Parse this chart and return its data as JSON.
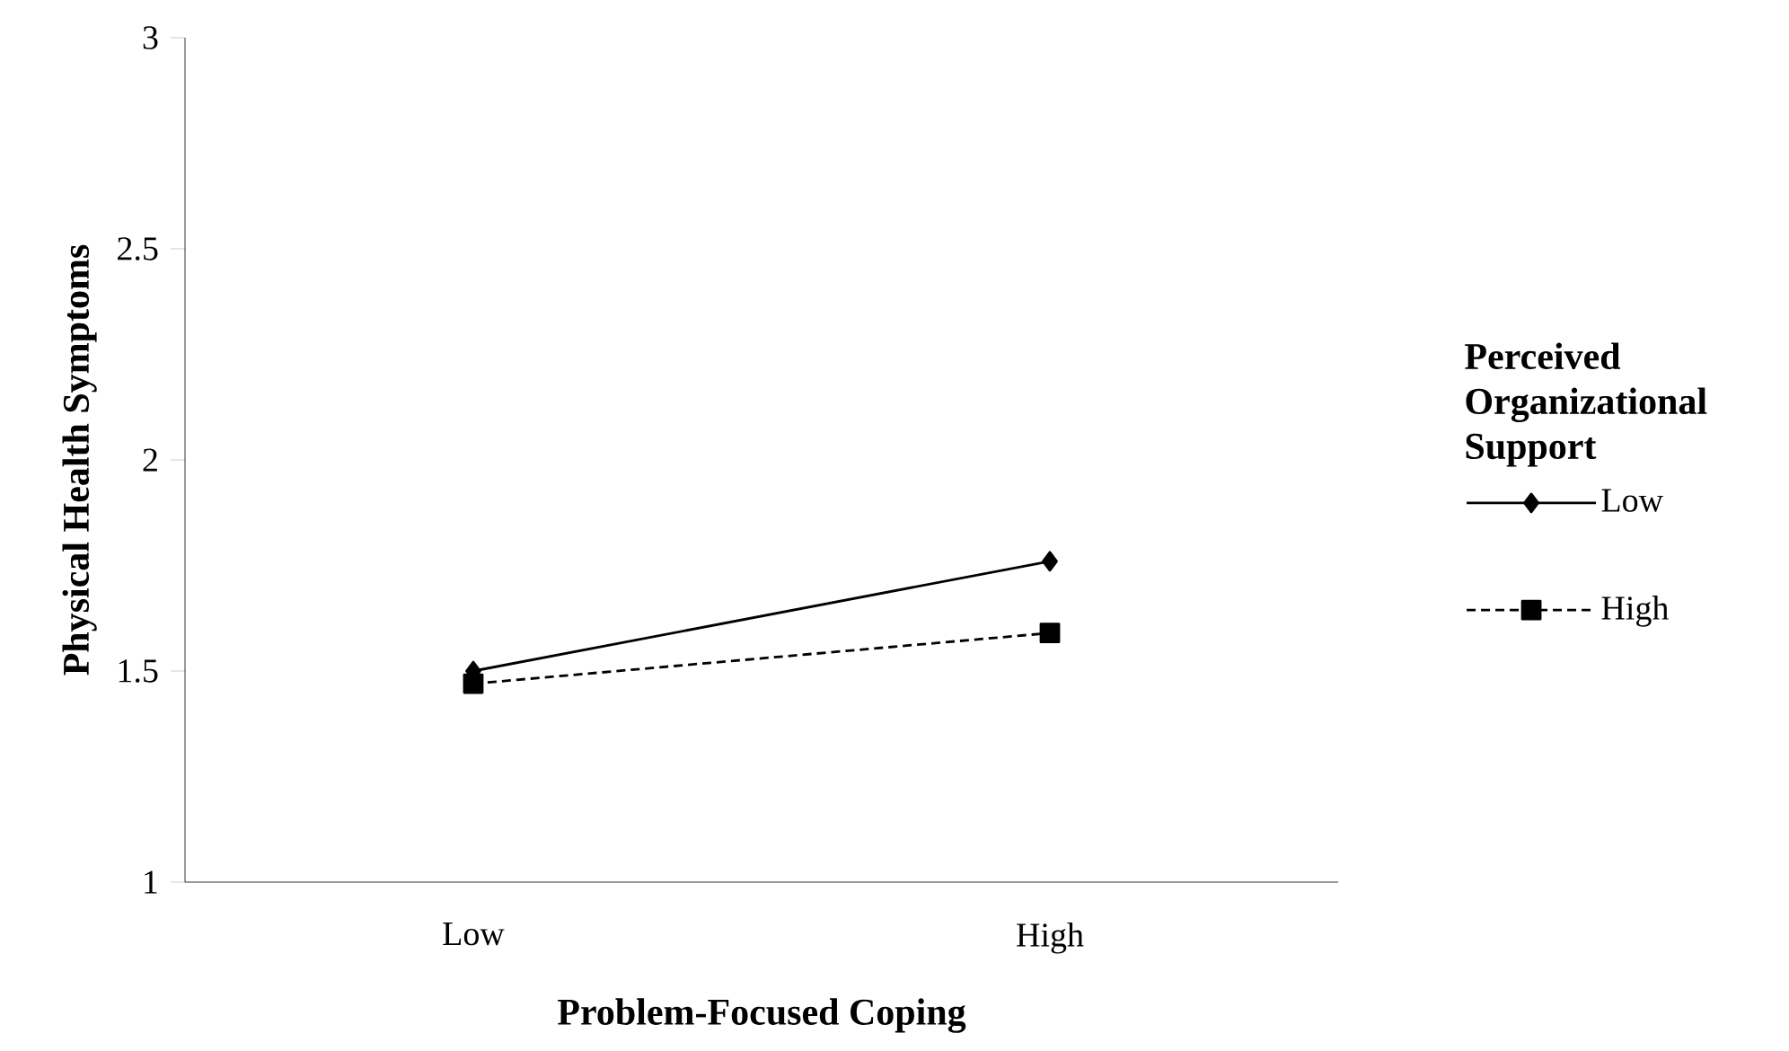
{
  "chart_data": {
    "type": "line",
    "xlabel": "Problem-Focused Coping",
    "ylabel": "Physical Health Symptoms",
    "legend_title": "Perceived Organizational Support",
    "categories": [
      "Low",
      "High"
    ],
    "series": [
      {
        "name": "Low",
        "color": "#000000",
        "values": [
          1.5,
          1.76
        ],
        "marker": "diamond",
        "line_style": "solid"
      },
      {
        "name": "High",
        "color": "#000000",
        "values": [
          1.47,
          1.59
        ],
        "marker": "square",
        "line_style": "dashed"
      }
    ],
    "ylim": [
      1,
      3
    ],
    "yticks": [
      1,
      1.5,
      2,
      2.5,
      3
    ],
    "grid": false,
    "legend": "right"
  }
}
